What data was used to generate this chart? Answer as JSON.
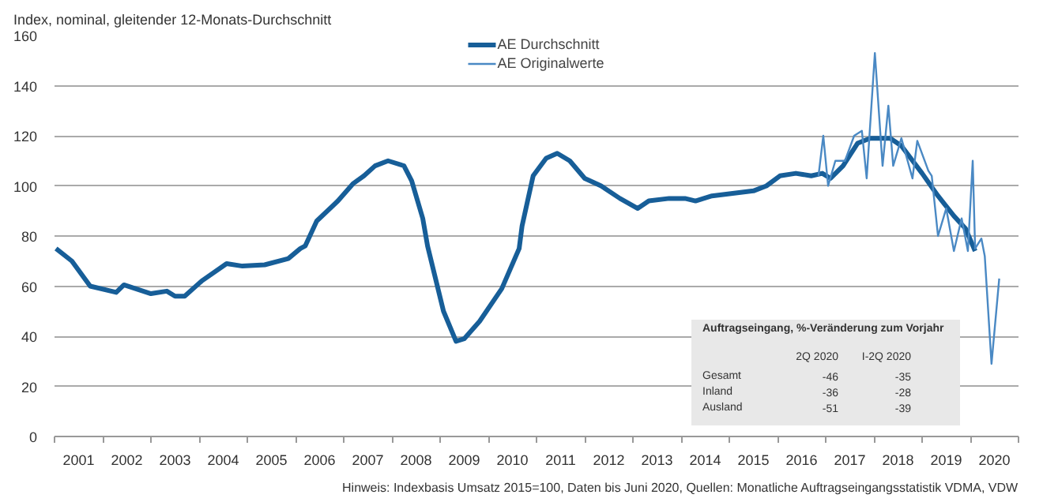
{
  "chart_data": {
    "type": "line",
    "ylabel": "Index, nominal, gleitender 12-Monats-Durchschnitt",
    "xlim": [
      2001,
      2021
    ],
    "xticks": [
      {
        "value": 2001.5,
        "label": "2001"
      },
      {
        "value": 2002.5,
        "label": "2002"
      },
      {
        "value": 2003.5,
        "label": "2003"
      },
      {
        "value": 2004.5,
        "label": "2004"
      },
      {
        "value": 2005.5,
        "label": "2005"
      },
      {
        "value": 2006.5,
        "label": "2006"
      },
      {
        "value": 2007.5,
        "label": "2007"
      },
      {
        "value": 2008.5,
        "label": "2008"
      },
      {
        "value": 2009.5,
        "label": "2009"
      },
      {
        "value": 2010.5,
        "label": "2010"
      },
      {
        "value": 2011.5,
        "label": "2011"
      },
      {
        "value": 2012.5,
        "label": "2012"
      },
      {
        "value": 2013.5,
        "label": "2013"
      },
      {
        "value": 2014.5,
        "label": "2014"
      },
      {
        "value": 2015.5,
        "label": "2015"
      },
      {
        "value": 2016.5,
        "label": "2016"
      },
      {
        "value": 2017.5,
        "label": "2017"
      },
      {
        "value": 2018.5,
        "label": "2018"
      },
      {
        "value": 2019.5,
        "label": "2019"
      },
      {
        "value": 2020.5,
        "label": "2020"
      }
    ],
    "ylim": [
      0,
      160
    ],
    "yticks": [
      0,
      20,
      40,
      60,
      80,
      100,
      120,
      140,
      160
    ],
    "grid": "y",
    "legend": "top",
    "series": [
      {
        "name": "AE Durchschnitt",
        "color": "#175e98",
        "x": [
          2001.03,
          2001.36,
          2001.74,
          2002.28,
          2002.44,
          2003.0,
          2003.33,
          2003.5,
          2003.7,
          2004.05,
          2004.57,
          2004.9,
          2005.36,
          2005.85,
          2006.1,
          2006.2,
          2006.44,
          2006.88,
          2007.2,
          2007.42,
          2007.65,
          2007.92,
          2008.25,
          2008.41,
          2008.64,
          2008.74,
          2009.07,
          2009.33,
          2009.5,
          2009.82,
          2010.28,
          2010.64,
          2010.7,
          2010.93,
          2011.2,
          2011.43,
          2011.69,
          2012.0,
          2012.34,
          2012.73,
          2013.1,
          2013.33,
          2013.75,
          2014.08,
          2014.3,
          2014.64,
          2015.07,
          2015.5,
          2015.77,
          2016.05,
          2016.38,
          2016.7,
          2016.93,
          2017.1,
          2017.36,
          2017.66,
          2017.92,
          2018.34,
          2018.57,
          2019.0,
          2019.33,
          2019.66,
          2019.9,
          2020.1
        ],
        "values": [
          75,
          70,
          60,
          57.5,
          60.5,
          57,
          58,
          56,
          56,
          62,
          69,
          68,
          68.5,
          71,
          75,
          76,
          86,
          94,
          101,
          104,
          108,
          110,
          108,
          102,
          87,
          76,
          50,
          38,
          39,
          46,
          59,
          75,
          84,
          104,
          111,
          113,
          110,
          103,
          100,
          95,
          91,
          94,
          95,
          95,
          94,
          96,
          97,
          98,
          100,
          104,
          105,
          104,
          105,
          103,
          108,
          117,
          119,
          119,
          116,
          105,
          96,
          88,
          83,
          74
        ]
      },
      {
        "name": "AE Originalwerte",
        "color": "#4a89c4",
        "x": [
          2016.85,
          2016.95,
          2017.05,
          2017.2,
          2017.4,
          2017.59,
          2017.75,
          2017.85,
          2018.02,
          2018.18,
          2018.3,
          2018.4,
          2018.57,
          2018.8,
          2018.9,
          2019.13,
          2019.2,
          2019.33,
          2019.5,
          2019.66,
          2019.82,
          2019.95,
          2020.05,
          2020.1,
          2020.23,
          2020.3,
          2020.44,
          2020.6
        ],
        "values": [
          104,
          120,
          100,
          110,
          110,
          120,
          122,
          103,
          153,
          108,
          132,
          108,
          119,
          103,
          118,
          106,
          104,
          80,
          91,
          74,
          87,
          74,
          110,
          75,
          79,
          72,
          29,
          63
        ]
      }
    ],
    "annotations": [
      "Auftragseingang, %-Veränderung zum Vorjahr",
      "2Q 2020",
      "I-2Q 2020",
      "Gesamt",
      "-46",
      "-35",
      "Inland",
      "-36",
      "-28",
      "Ausland",
      "-51",
      "-39",
      "Hinweis: Indexbasis Umsatz 2015=100, Daten bis Juni 2020, Quellen: Monatliche Auftragseingangsstatistik VDMA, VDW"
    ]
  }
}
